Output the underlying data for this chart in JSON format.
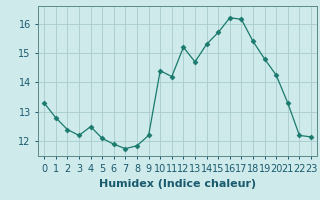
{
  "x": [
    0,
    1,
    2,
    3,
    4,
    5,
    6,
    7,
    8,
    9,
    10,
    11,
    12,
    13,
    14,
    15,
    16,
    17,
    18,
    19,
    20,
    21,
    22,
    23
  ],
  "y": [
    13.3,
    12.8,
    12.4,
    12.2,
    12.5,
    12.1,
    11.9,
    11.75,
    11.85,
    12.2,
    14.4,
    14.2,
    15.2,
    14.7,
    15.3,
    15.7,
    16.2,
    16.15,
    15.4,
    14.8,
    14.25,
    13.3,
    12.2,
    12.15
  ],
  "line_color": "#1a7a6e",
  "marker": "D",
  "marker_size": 2.5,
  "bg_color": "#ceeaea",
  "grid_color": "#aacccc",
  "xlabel": "Humidex (Indice chaleur)",
  "ylim": [
    11.5,
    16.6
  ],
  "xlim": [
    -0.5,
    23.5
  ],
  "yticks": [
    12,
    13,
    14,
    15,
    16
  ],
  "xtick_labels": [
    "0",
    "1",
    "2",
    "3",
    "4",
    "5",
    "6",
    "7",
    "8",
    "9",
    "10",
    "11",
    "12",
    "13",
    "14",
    "15",
    "16",
    "17",
    "18",
    "19",
    "20",
    "21",
    "22",
    "23"
  ],
  "xlabel_fontsize": 8,
  "tick_fontsize": 7
}
